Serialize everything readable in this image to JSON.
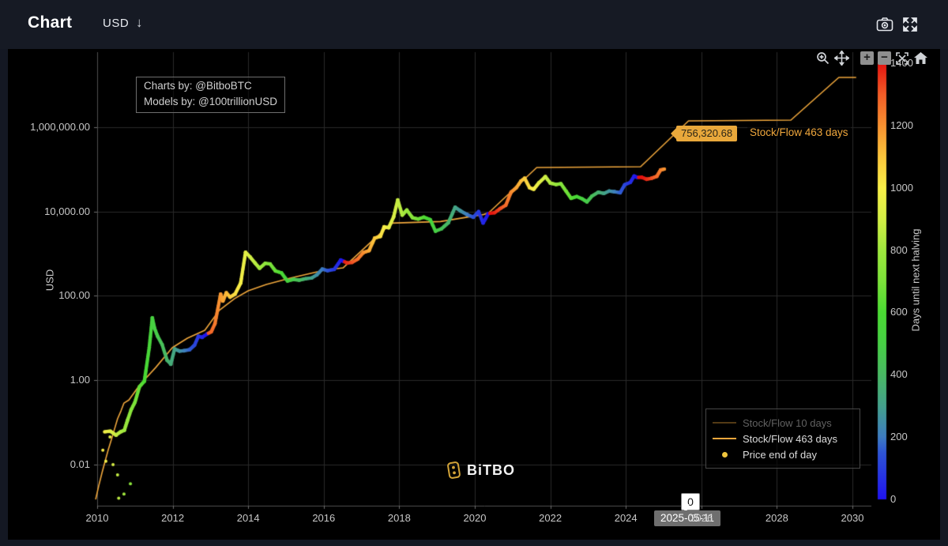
{
  "topbar": {
    "title": "Chart",
    "currency": "USD",
    "currency_arrow": "↓"
  },
  "annotation": {
    "line1": "Charts by: @BitboBTC",
    "line2": "Models by: @100trillionUSD"
  },
  "watermark": {
    "brand": "BiTBO"
  },
  "legend": {
    "items": [
      {
        "label": "Stock/Flow 10 days",
        "state": "dimmed",
        "swatch": "line",
        "color": "rgba(240,167,60,0.35)",
        "text_color": "#616161"
      },
      {
        "label": "Stock/Flow 463 days",
        "state": "active",
        "swatch": "line",
        "color": "#f0a73c",
        "text_color": "#dcdcdc"
      },
      {
        "label": "Price end of day",
        "state": "active",
        "swatch": "dot",
        "color": "#eec43d",
        "text_color": "#dcdcdc"
      }
    ]
  },
  "hover": {
    "y_value": "756,320.68",
    "y_series": "Stock/Flow 463 days",
    "color_value": "0",
    "date": "2025-05-11"
  },
  "colors": {
    "accent_orange": "#f0a73c",
    "grid": "#2a2a2a",
    "axis_line": "#4f4f4f",
    "tick_text": "#c7c7c7",
    "plot_bg": "#000000",
    "frame_bg": "#141823"
  },
  "chart_data": {
    "type": "scatter",
    "title": "",
    "xlabel": "",
    "ylabel": "USD",
    "x_ticks": [
      2010,
      2012,
      2014,
      2016,
      2018,
      2020,
      2022,
      2024,
      2026,
      2028,
      2030
    ],
    "x_range": [
      2009.9,
      2030.3
    ],
    "y_scale": "log",
    "y_ticks": [
      {
        "label": "1,000,000.00",
        "v": 1000000
      },
      {
        "label": "10,000.00",
        "v": 10000
      },
      {
        "label": "100.00",
        "v": 100
      },
      {
        "label": "1.00",
        "v": 1
      },
      {
        "label": "0.01",
        "v": 0.01
      }
    ],
    "colorbar": {
      "title": "Days until next halving",
      "min": 0,
      "max": 1400,
      "ticks": [
        0,
        200,
        400,
        600,
        800,
        1000,
        1200,
        1400
      ],
      "stops": [
        [
          0,
          "#2013f0"
        ],
        [
          150,
          "#2e55d5"
        ],
        [
          200,
          "#3e7cc1"
        ],
        [
          300,
          "#44a18c"
        ],
        [
          400,
          "#49b964"
        ],
        [
          500,
          "#47cf45"
        ],
        [
          600,
          "#4ada33"
        ],
        [
          700,
          "#7ce23a"
        ],
        [
          800,
          "#9fe83e"
        ],
        [
          900,
          "#d4ee45"
        ],
        [
          1000,
          "#f8ef48"
        ],
        [
          1100,
          "#fbc63c"
        ],
        [
          1200,
          "#f79131"
        ],
        [
          1300,
          "#f25c27"
        ],
        [
          1400,
          "#e51410"
        ]
      ]
    },
    "halvings": [
      2012.91,
      2016.52,
      2020.36,
      2024.3,
      2028.3
    ],
    "series": [
      {
        "name": "Stock/Flow 463 days",
        "type": "line",
        "color": "#f0a73c",
        "points": [
          [
            2009.96,
            0.0015
          ],
          [
            2010.04,
            0.0031
          ],
          [
            2010.13,
            0.0065
          ],
          [
            2010.21,
            0.012
          ],
          [
            2010.29,
            0.022
          ],
          [
            2010.38,
            0.04
          ],
          [
            2010.46,
            0.07
          ],
          [
            2010.54,
            0.122
          ],
          [
            2010.63,
            0.187
          ],
          [
            2010.71,
            0.288
          ],
          [
            2010.84,
            0.34
          ],
          [
            2011.13,
            0.78
          ],
          [
            2011.55,
            2.0
          ],
          [
            2011.99,
            5.9
          ],
          [
            2012.39,
            9.9
          ],
          [
            2012.85,
            15.3
          ],
          [
            2013.23,
            45
          ],
          [
            2013.64,
            86
          ],
          [
            2014.0,
            132
          ],
          [
            2014.48,
            186
          ],
          [
            2015.11,
            263
          ],
          [
            2015.74,
            356
          ],
          [
            2016.01,
            404
          ],
          [
            2016.51,
            459
          ],
          [
            2017.79,
            5290
          ],
          [
            2019.09,
            5760
          ],
          [
            2020.24,
            8500
          ],
          [
            2020.37,
            9300
          ],
          [
            2021.64,
            110000
          ],
          [
            2024.39,
            115000
          ],
          [
            2025.66,
            1400000
          ],
          [
            2028.37,
            1460000
          ],
          [
            2029.64,
            15000000
          ],
          [
            2030.1,
            15000000
          ]
        ]
      },
      {
        "name": "Price end of day",
        "type": "colored-dots",
        "points": [
          [
            2010.2,
            0.06
          ],
          [
            2010.35,
            0.062
          ],
          [
            2010.5,
            0.05
          ],
          [
            2010.62,
            0.06
          ],
          [
            2010.72,
            0.065
          ],
          [
            2010.8,
            0.11
          ],
          [
            2010.9,
            0.2
          ],
          [
            2011.0,
            0.3
          ],
          [
            2011.12,
            0.7
          ],
          [
            2011.25,
            0.95
          ],
          [
            2011.38,
            6
          ],
          [
            2011.46,
            30
          ],
          [
            2011.52,
            17
          ],
          [
            2011.6,
            11
          ],
          [
            2011.72,
            7
          ],
          [
            2011.85,
            3
          ],
          [
            2011.95,
            2.4
          ],
          [
            2012.05,
            5.5
          ],
          [
            2012.18,
            4.9
          ],
          [
            2012.3,
            5
          ],
          [
            2012.45,
            5.3
          ],
          [
            2012.58,
            6.8
          ],
          [
            2012.68,
            11
          ],
          [
            2012.78,
            10.4
          ],
          [
            2012.91,
            12.5
          ],
          [
            2013.02,
            14
          ],
          [
            2013.12,
            22
          ],
          [
            2013.27,
            110
          ],
          [
            2013.33,
            75
          ],
          [
            2013.42,
            118
          ],
          [
            2013.52,
            93
          ],
          [
            2013.65,
            110
          ],
          [
            2013.8,
            200
          ],
          [
            2013.93,
            1080
          ],
          [
            2014.05,
            830
          ],
          [
            2014.18,
            600
          ],
          [
            2014.3,
            450
          ],
          [
            2014.45,
            590
          ],
          [
            2014.58,
            570
          ],
          [
            2014.72,
            390
          ],
          [
            2014.88,
            350
          ],
          [
            2015.04,
            225
          ],
          [
            2015.2,
            245
          ],
          [
            2015.35,
            235
          ],
          [
            2015.52,
            255
          ],
          [
            2015.68,
            265
          ],
          [
            2015.82,
            315
          ],
          [
            2015.96,
            430
          ],
          [
            2016.1,
            395
          ],
          [
            2016.28,
            425
          ],
          [
            2016.45,
            705
          ],
          [
            2016.52,
            660
          ],
          [
            2016.62,
            600
          ],
          [
            2016.75,
            620
          ],
          [
            2016.9,
            745
          ],
          [
            2017.05,
            1060
          ],
          [
            2017.2,
            1180
          ],
          [
            2017.35,
            2350
          ],
          [
            2017.5,
            2550
          ],
          [
            2017.6,
            4300
          ],
          [
            2017.72,
            4100
          ],
          [
            2017.85,
            7400
          ],
          [
            2017.96,
            18700
          ],
          [
            2018.08,
            8200
          ],
          [
            2018.2,
            10800
          ],
          [
            2018.35,
            7100
          ],
          [
            2018.5,
            6600
          ],
          [
            2018.65,
            7300
          ],
          [
            2018.82,
            6400
          ],
          [
            2018.96,
            3400
          ],
          [
            2019.12,
            3900
          ],
          [
            2019.3,
            5400
          ],
          [
            2019.48,
            12600
          ],
          [
            2019.63,
            10200
          ],
          [
            2019.8,
            8400
          ],
          [
            2019.96,
            7300
          ],
          [
            2020.1,
            9900
          ],
          [
            2020.22,
            5300
          ],
          [
            2020.36,
            8900
          ],
          [
            2020.52,
            9300
          ],
          [
            2020.68,
            11800
          ],
          [
            2020.82,
            14000
          ],
          [
            2020.96,
            28500
          ],
          [
            2021.1,
            36500
          ],
          [
            2021.22,
            52000
          ],
          [
            2021.32,
            61500
          ],
          [
            2021.45,
            36500
          ],
          [
            2021.56,
            33500
          ],
          [
            2021.7,
            48000
          ],
          [
            2021.87,
            66500
          ],
          [
            2022.0,
            47000
          ],
          [
            2022.15,
            43500
          ],
          [
            2022.28,
            45500
          ],
          [
            2022.42,
            30000
          ],
          [
            2022.55,
            20500
          ],
          [
            2022.7,
            22500
          ],
          [
            2022.85,
            19800
          ],
          [
            2022.97,
            16800
          ],
          [
            2023.1,
            23000
          ],
          [
            2023.27,
            28500
          ],
          [
            2023.42,
            26800
          ],
          [
            2023.56,
            30500
          ],
          [
            2023.7,
            29300
          ],
          [
            2023.85,
            27800
          ],
          [
            2023.97,
            43000
          ],
          [
            2024.12,
            49000
          ],
          [
            2024.22,
            69000
          ],
          [
            2024.3,
            64000
          ],
          [
            2024.42,
            64500
          ],
          [
            2024.55,
            58000
          ],
          [
            2024.68,
            61000
          ],
          [
            2024.82,
            68000
          ],
          [
            2024.92,
            96000
          ],
          [
            2025.02,
            101000
          ]
        ]
      },
      {
        "name": "early sparse dots",
        "type": "sparse-dots",
        "points": [
          [
            2010.15,
            0.022
          ],
          [
            2010.23,
            0.012
          ],
          [
            2010.34,
            0.045
          ],
          [
            2010.42,
            0.01
          ],
          [
            2010.54,
            0.0057
          ],
          [
            2010.57,
            0.0016
          ],
          [
            2010.71,
            0.002
          ],
          [
            2010.88,
            0.0035
          ]
        ]
      }
    ]
  }
}
